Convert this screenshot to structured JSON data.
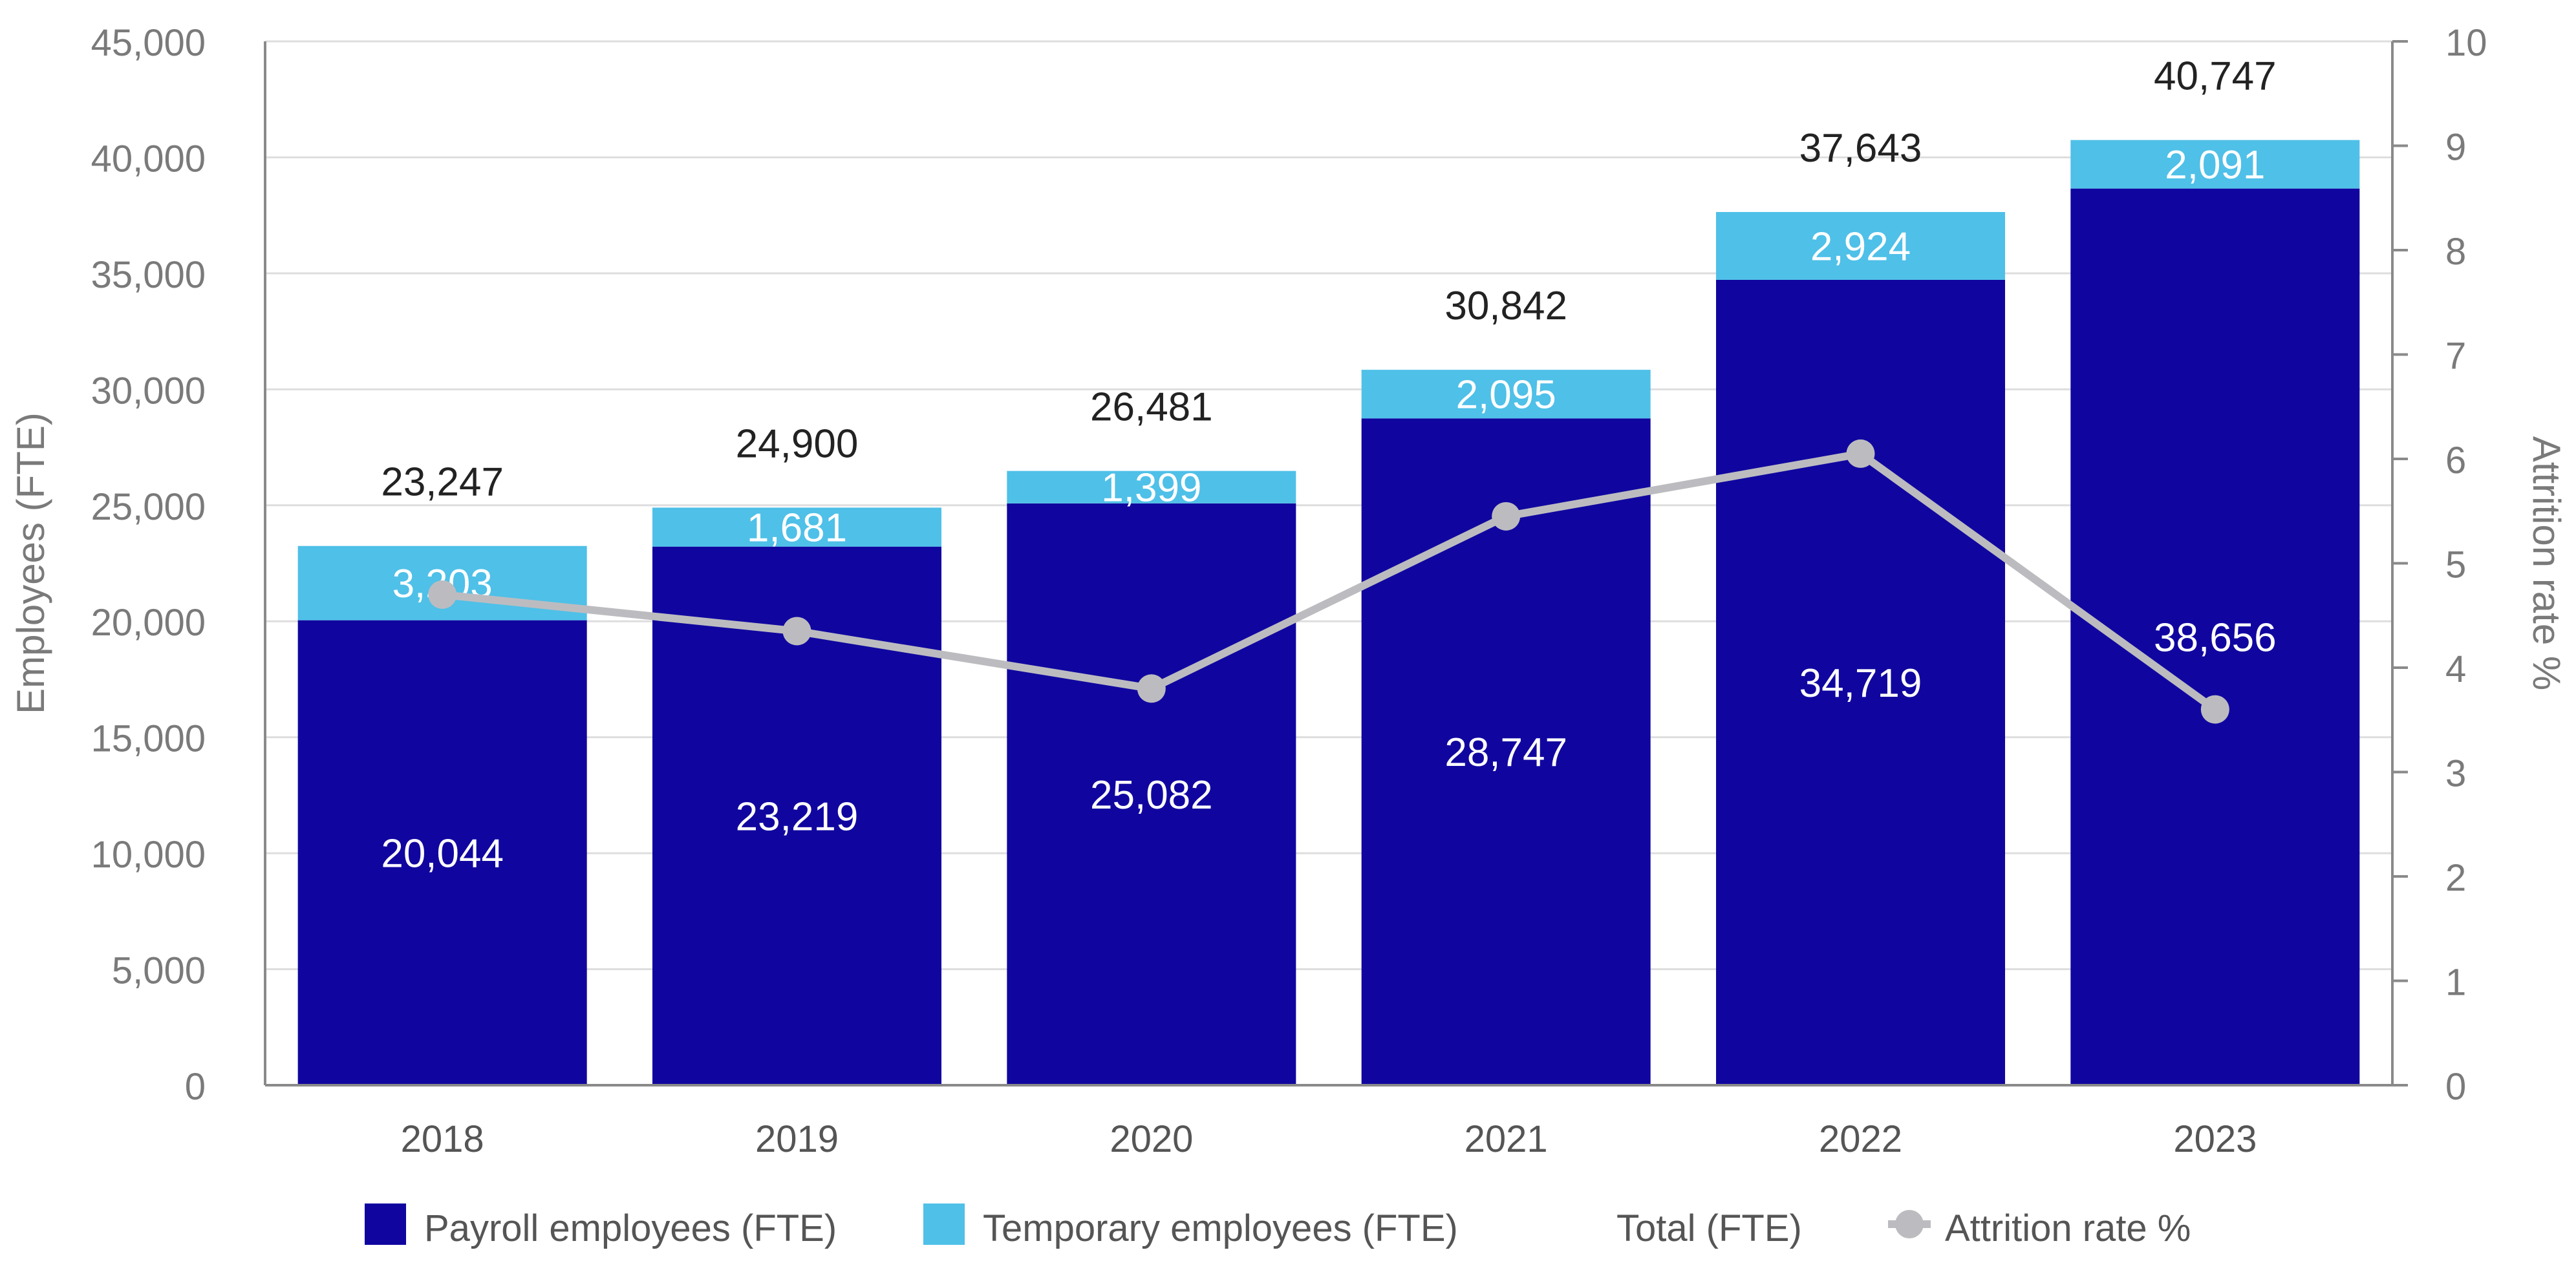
{
  "chart_data": {
    "type": "bar",
    "stacked": true,
    "categories": [
      "2018",
      "2019",
      "2020",
      "2021",
      "2022",
      "2023"
    ],
    "series": [
      {
        "name": "Payroll employees (FTE)",
        "kind": "bar",
        "color": "#10069f",
        "values": [
          20044,
          23219,
          25082,
          28747,
          34719,
          38656
        ],
        "labels": [
          "20,044",
          "23,219",
          "25,082",
          "28,747",
          "34,719",
          "38,656"
        ]
      },
      {
        "name": "Temporary employees (FTE)",
        "kind": "bar",
        "color": "#4fc0e8",
        "values": [
          3203,
          1681,
          1399,
          2095,
          2924,
          2091
        ],
        "labels": [
          "3,203",
          "1,681",
          "1,399",
          "2,095",
          "2,924",
          "2,091"
        ]
      },
      {
        "name": "Total (FTE)",
        "kind": "label",
        "values": [
          23247,
          24900,
          26481,
          30842,
          37643,
          40747
        ],
        "labels": [
          "23,247",
          "24,900",
          "26,481",
          "30,842",
          "37,643",
          "40,747"
        ]
      },
      {
        "name": "Attrition rate %",
        "kind": "line",
        "axis": "right",
        "color": "#bcbcc0",
        "values": [
          4.7,
          4.35,
          3.8,
          5.45,
          6.05,
          3.6
        ]
      }
    ],
    "ylabel": "Employees (FTE)",
    "y2label": "Attrition rate %",
    "ylim": [
      0,
      45000
    ],
    "y2lim": [
      0,
      10
    ],
    "yticks": [
      "0",
      "5,000",
      "10,000",
      "15,000",
      "20,000",
      "25,000",
      "30,000",
      "35,000",
      "40,000",
      "45,000"
    ],
    "y2ticks": [
      "0",
      "1",
      "2",
      "3",
      "4",
      "5",
      "6",
      "7",
      "8",
      "9",
      "10"
    ],
    "grid": true,
    "legend": "bottom"
  }
}
